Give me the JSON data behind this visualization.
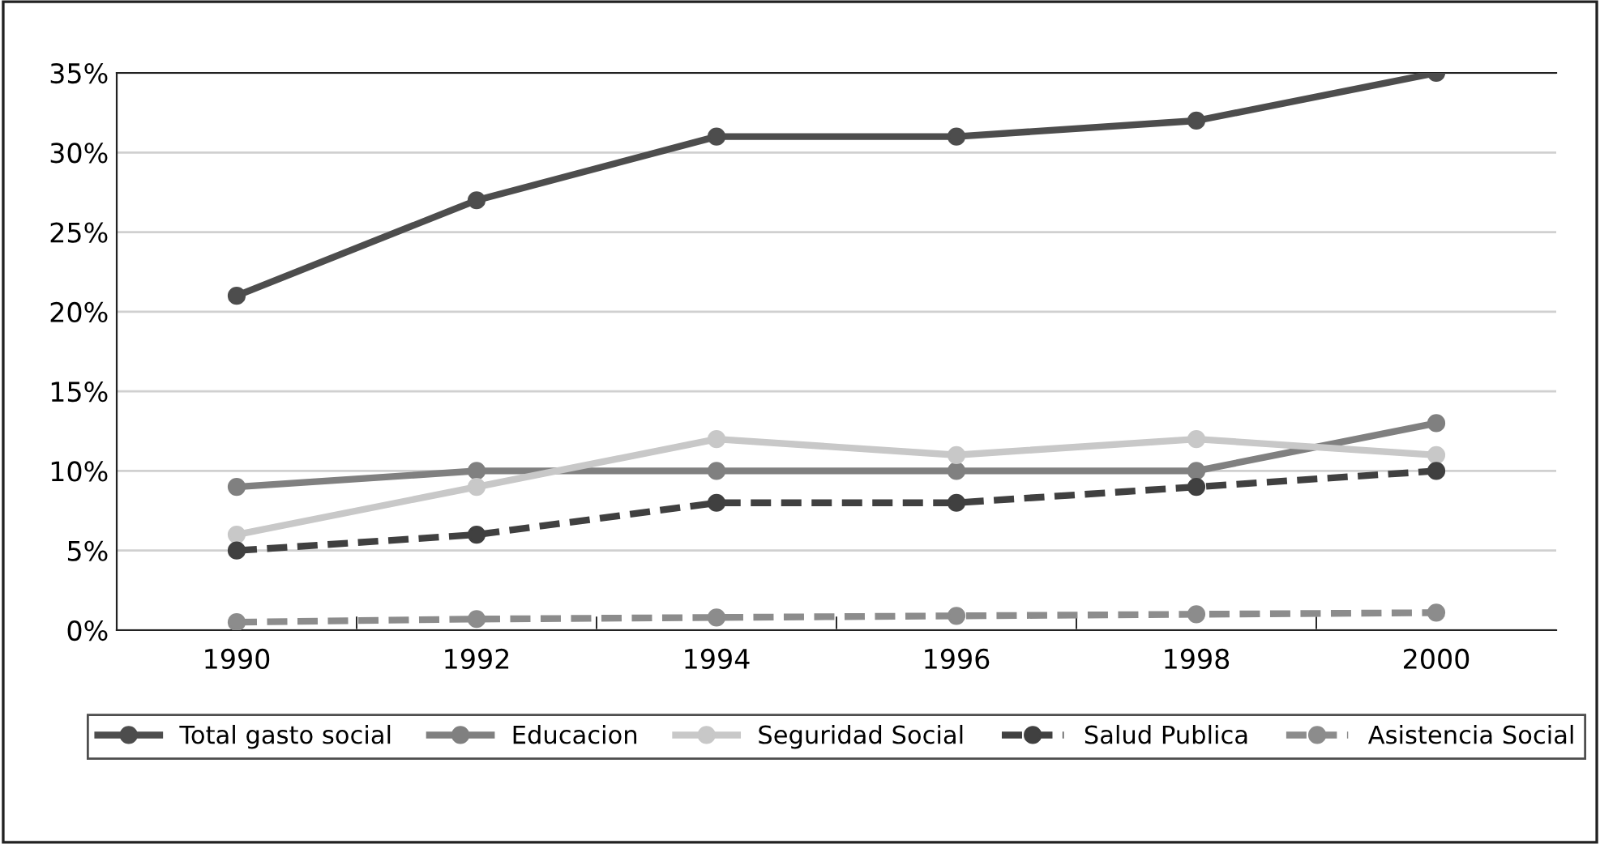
{
  "chart_data": {
    "type": "line",
    "categories": [
      "1990",
      "1992",
      "1994",
      "1996",
      "1998",
      "2000"
    ],
    "series": [
      {
        "name": "Total gasto social",
        "color": "#4d4d4d",
        "values": [
          21,
          27,
          31,
          31,
          32,
          35
        ],
        "line_style": "solid"
      },
      {
        "name": "Educacion",
        "color": "#808080",
        "values": [
          9,
          10,
          10,
          10,
          10,
          13
        ],
        "line_style": "solid"
      },
      {
        "name": "Seguridad Social",
        "color": "#c8c8c8",
        "values": [
          6,
          9,
          12,
          11,
          12,
          11
        ],
        "line_style": "solid"
      },
      {
        "name": "Salud Publica",
        "color": "#404040",
        "values": [
          5,
          6,
          8,
          8,
          9,
          10
        ],
        "line_style": "dashed"
      },
      {
        "name": "Asistencia Social",
        "color": "#8c8c8c",
        "values": [
          0.5,
          0.7,
          0.8,
          0.9,
          1.0,
          1.1
        ],
        "line_style": "dashed"
      }
    ],
    "ylim": [
      0,
      35
    ],
    "yticks": [
      {
        "value": 0,
        "label": "0%"
      },
      {
        "value": 5,
        "label": "5%"
      },
      {
        "value": 10,
        "label": "10%"
      },
      {
        "value": 15,
        "label": "15%"
      },
      {
        "value": 20,
        "label": "20%"
      },
      {
        "value": 25,
        "label": "25%"
      },
      {
        "value": 30,
        "label": "30%"
      },
      {
        "value": 35,
        "label": "35%"
      }
    ],
    "grid": "y",
    "legend": "bottom",
    "marker": "circle"
  }
}
